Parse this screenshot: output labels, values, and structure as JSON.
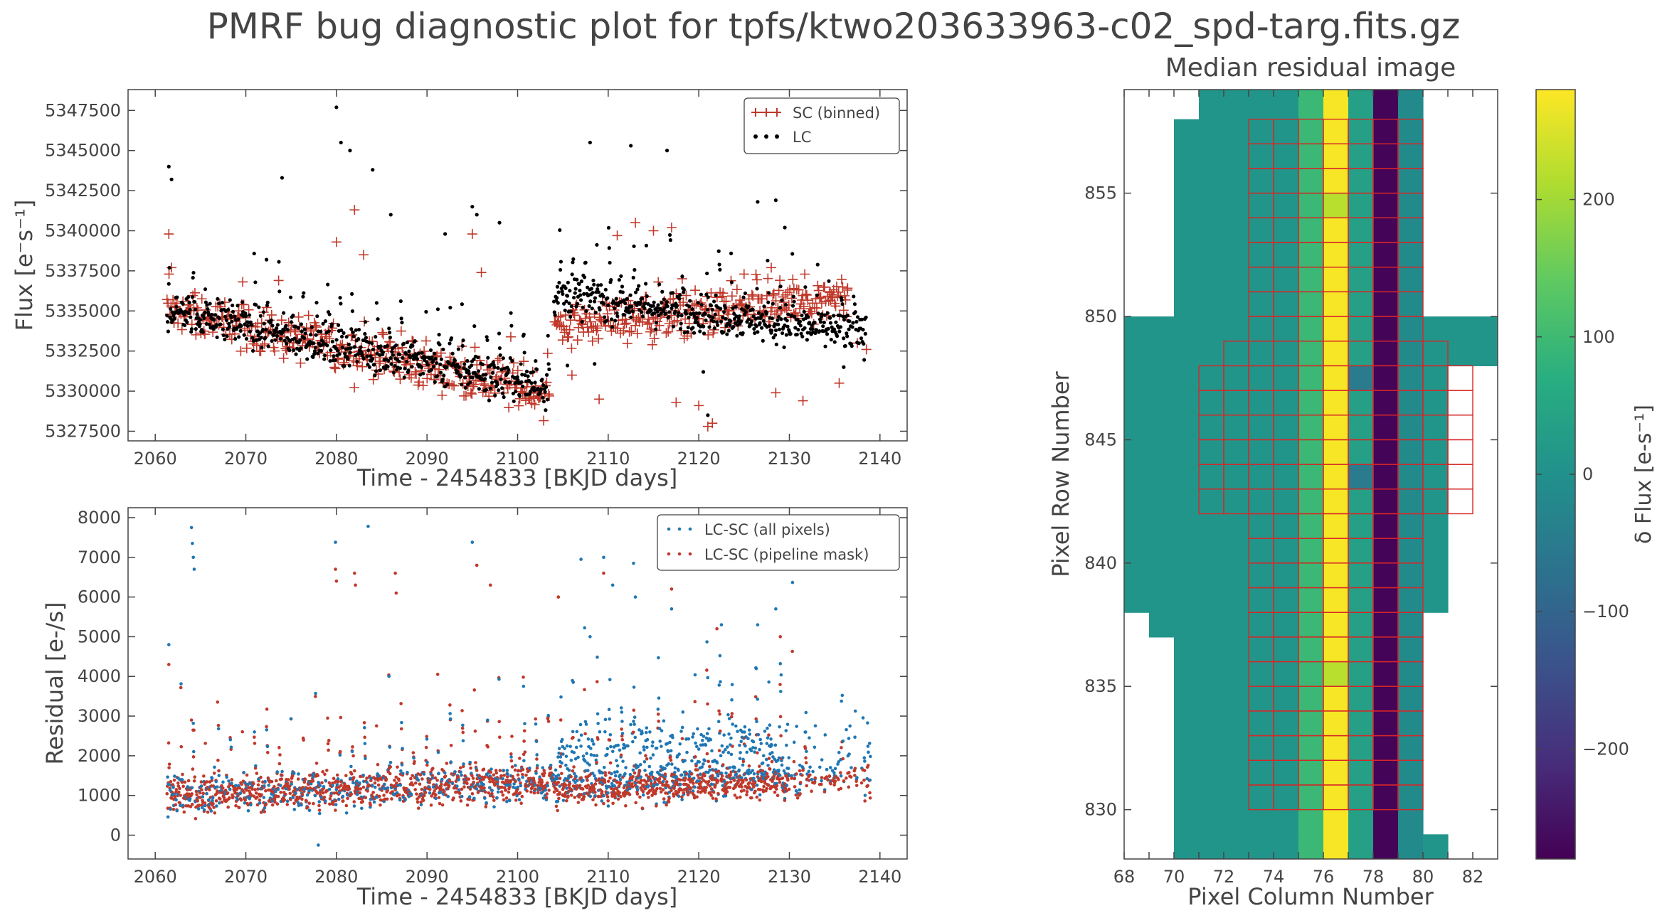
{
  "title": "PMRF bug diagnostic plot for tpfs/ktwo203633963-c02_spd-targ.fits.gz",
  "chart_data": [
    {
      "id": "flux",
      "type": "scatter",
      "xlabel": "Time - 2454833 [BKJD days]",
      "ylabel": "Flux [e⁻s⁻¹]",
      "xlim": [
        2057,
        2143
      ],
      "ylim": [
        5326900,
        5348800
      ],
      "xticks": [
        2060,
        2070,
        2080,
        2090,
        2100,
        2110,
        2120,
        2130,
        2140
      ],
      "yticks": [
        5327500,
        5330000,
        5332500,
        5335000,
        5337500,
        5340000,
        5342500,
        5345000,
        5347500
      ],
      "legend": {
        "position": "top-right",
        "entries": [
          "SC (binned)",
          "LC"
        ]
      },
      "series": [
        {
          "name": "SC (binned)",
          "color": "#c0392b",
          "marker": "plus",
          "segments": [
            [
              2061.3,
              2103.5,
              5335000,
              5329800
            ],
            [
              2104.0,
              2136.5,
              5334000,
              5335500
            ]
          ],
          "points": [
            [
              2061.5,
              5339800
            ],
            [
              2061.8,
              5337700
            ],
            [
              2080.0,
              5339300
            ],
            [
              2082.0,
              5341300
            ],
            [
              2083.0,
              5338500
            ],
            [
              2095.0,
              5339800
            ],
            [
              2096.0,
              5337400
            ],
            [
              2111.0,
              5339700
            ],
            [
              2113.0,
              5340500
            ],
            [
              2115.0,
              5340000
            ],
            [
              2117.0,
              5340200
            ],
            [
              2120.0,
              5329100
            ],
            [
              2121.5,
              5328000
            ],
            [
              2121.0,
              5327800
            ],
            [
              2125.0,
              5337300
            ],
            [
              2128.0,
              5337700
            ],
            [
              2130.5,
              5336400
            ],
            [
              2134.5,
              5336200
            ],
            [
              2136.4,
              5336300
            ],
            [
              2135.5,
              5330500
            ],
            [
              2131.5,
              5329400
            ],
            [
              2128.5,
              5329900
            ],
            [
              2106.0,
              5331000
            ],
            [
              2103.5,
              5329700
            ],
            [
              2117.5,
              5329300
            ],
            [
              2109.0,
              5329500
            ],
            [
              2138.5,
              5332600
            ],
            [
              2137.5,
              5333000
            ]
          ]
        },
        {
          "name": "LC",
          "color": "#000000",
          "marker": "dot",
          "segments": [
            [
              2061.3,
              2103.5,
              5335000,
              5330200
            ],
            [
              2104.0,
              2138.5,
              5336000,
              5333500
            ]
          ],
          "points": [
            [
              2061.5,
              5344000
            ],
            [
              2061.8,
              5343200
            ],
            [
              2080.0,
              5347700
            ],
            [
              2080.5,
              5345500
            ],
            [
              2081.5,
              5345000
            ],
            [
              2084.0,
              5343800
            ],
            [
              2092.0,
              5339800
            ],
            [
              2095.0,
              5341500
            ],
            [
              2095.5,
              5341000
            ],
            [
              2098.0,
              5340500
            ],
            [
              2108.0,
              5345500
            ],
            [
              2112.5,
              5345300
            ],
            [
              2116.5,
              5345000
            ],
            [
              2126.5,
              5341800
            ],
            [
              2128.5,
              5341900
            ],
            [
              2129.5,
              5340200
            ],
            [
              2074.0,
              5343300
            ],
            [
              2086.0,
              5341000
            ],
            [
              2136.0,
              5331500
            ],
            [
              2121.0,
              5328500
            ],
            [
              2120.5,
              5331200
            ],
            [
              2105.5,
              5331600
            ],
            [
              2108.5,
              5331700
            ]
          ]
        }
      ]
    },
    {
      "id": "residual",
      "type": "scatter",
      "xlabel": "Time - 2454833 [BKJD days]",
      "ylabel": "Residual [e-/s]",
      "xlim": [
        2057,
        2143
      ],
      "ylim": [
        -600,
        8250
      ],
      "xticks": [
        2060,
        2070,
        2080,
        2090,
        2100,
        2110,
        2120,
        2130,
        2140
      ],
      "yticks": [
        0,
        1000,
        2000,
        3000,
        4000,
        5000,
        6000,
        7000,
        8000
      ],
      "legend": {
        "position": "top-right",
        "entries": [
          "LC-SC (all pixels)",
          "LC-SC (pipeline mask)"
        ]
      },
      "series": [
        {
          "name": "LC-SC (all pixels)",
          "color": "#1f77b4",
          "marker": "dot",
          "points": [
            [
              2064.0,
              7750
            ],
            [
              2064.1,
              7350
            ],
            [
              2064.2,
              7000
            ],
            [
              2064.3,
              6700
            ],
            [
              2079.9,
              7380
            ],
            [
              2083.5,
              7780
            ],
            [
              2095.0,
              7380
            ],
            [
              2107.0,
              6950
            ],
            [
              2109.5,
              7000
            ],
            [
              2112.8,
              6850
            ],
            [
              2078.0,
              -250
            ],
            [
              2061.5,
              4800
            ],
            [
              2108.0,
              5000
            ],
            [
              2128.5,
              5700
            ],
            [
              2126.5,
              5300
            ],
            [
              2122.5,
              5300
            ],
            [
              2117.0,
              5700
            ],
            [
              2113.0,
              6000
            ],
            [
              2110.5,
              6300
            ]
          ]
        },
        {
          "name": "LC-SC (pipeline mask)",
          "color": "#c0392b",
          "marker": "dot",
          "points": [
            [
              2079.9,
              6700
            ],
            [
              2080.0,
              6400
            ],
            [
              2082.0,
              6600
            ],
            [
              2082.1,
              6300
            ],
            [
              2086.5,
              6600
            ],
            [
              2086.6,
              6100
            ],
            [
              2095.5,
              6800
            ],
            [
              2097.0,
              6300
            ],
            [
              2109.5,
              6600
            ],
            [
              2104.5,
              6000
            ],
            [
              2117.0,
              6200
            ],
            [
              2122.0,
              5200
            ],
            [
              2129.0,
              5000
            ],
            [
              2061.5,
              4300
            ],
            [
              2064.0,
              2900
            ]
          ]
        }
      ]
    },
    {
      "id": "residual-image",
      "type": "heatmap",
      "title": "Median residual image",
      "xlabel": "Pixel Column Number",
      "ylabel": "Pixel Row Number",
      "xlim": [
        68,
        83
      ],
      "ylim": [
        828,
        859.2
      ],
      "xticks": [
        68,
        69,
        70,
        71,
        72,
        73,
        74,
        75,
        76,
        77,
        78,
        79,
        80,
        81,
        82
      ],
      "xtick_labels": [
        "68",
        "",
        "70",
        "",
        "72",
        "",
        "74",
        "",
        "76",
        "",
        "78",
        "",
        "80",
        "",
        "82"
      ],
      "yticks": [
        830,
        835,
        840,
        845,
        850,
        855
      ],
      "colorbar": {
        "label": "δ Flux [e-s⁻¹]",
        "range": [
          -280,
          280
        ],
        "ticks": [
          200,
          100,
          0,
          -100,
          -200
        ],
        "tick_labels": [
          "200",
          "100",
          "0",
          "−100",
          "−200"
        ]
      },
      "base_value": 10,
      "column_values": [
        {
          "col": 75,
          "value": 95
        },
        {
          "col": 76,
          "value": 275
        },
        {
          "col": 77,
          "value": 35
        },
        {
          "col": 78,
          "value": -275
        },
        {
          "col": 79,
          "value": -15
        }
      ],
      "special_cells": [
        {
          "col": 76,
          "row": 854,
          "value": 220
        },
        {
          "col": 76,
          "row": 835,
          "value": 220
        },
        {
          "col": 77,
          "row": 847,
          "value": -50
        },
        {
          "col": 77,
          "row": 843,
          "value": -50
        }
      ],
      "row_extents": [
        {
          "rows": [
            828,
            829
          ],
          "cols": [
            70,
            81
          ]
        },
        {
          "rows": [
            829,
            837
          ],
          "cols": [
            70,
            80
          ]
        },
        {
          "rows": [
            837,
            838
          ],
          "cols": [
            69,
            80
          ]
        },
        {
          "rows": [
            838,
            848
          ],
          "cols": [
            68,
            81
          ]
        },
        {
          "rows": [
            848,
            850
          ],
          "cols": [
            68,
            83
          ]
        },
        {
          "rows": [
            850,
            858
          ],
          "cols": [
            70,
            80
          ]
        },
        {
          "rows": [
            858,
            859.2
          ],
          "cols": [
            71,
            80
          ]
        }
      ],
      "aperture_outline_color": "#d62728",
      "aperture_rows": [
        {
          "rows": [
            830,
            842
          ],
          "cols": [
            73,
            80
          ]
        },
        {
          "rows": [
            842,
            848
          ],
          "cols": [
            71,
            82
          ]
        },
        {
          "rows": [
            848,
            849
          ],
          "cols": [
            72,
            81
          ]
        },
        {
          "rows": [
            849,
            858
          ],
          "cols": [
            73,
            80
          ]
        }
      ]
    }
  ]
}
